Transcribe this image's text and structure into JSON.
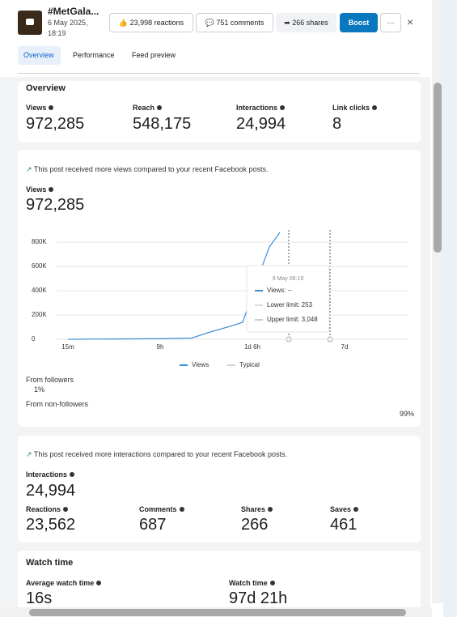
{
  "header": {
    "title": "#MetGala...",
    "date": "6 May 2025,",
    "time": "18:19",
    "actions": [
      "23,998 reactions",
      "751 comments",
      "266 shares"
    ],
    "boost": "Boost"
  },
  "tabs": [
    "Overview",
    "Performance",
    "Feed preview"
  ],
  "overview": {
    "heading": "Overview",
    "metrics": [
      {
        "label": "Views",
        "value": "972,285"
      },
      {
        "label": "Reach",
        "value": "548,175"
      },
      {
        "label": "Interactions",
        "value": "24,994"
      },
      {
        "label": "Link clicks",
        "value": "8"
      }
    ]
  },
  "views": {
    "note": "This post received more views compared to your recent Facebook posts.",
    "label": "Views",
    "value": "972,285",
    "followers": {
      "label": "From followers",
      "value": "1%"
    },
    "non_followers": {
      "label": "From non-followers",
      "value": "99%"
    }
  },
  "chart_data": {
    "type": "line",
    "x": [
      0.25,
      9,
      16.2,
      20.4,
      25,
      27.8,
      29.6,
      39.7,
      55.4,
      71.2
    ],
    "series": [
      {
        "name": "Views",
        "color": "#3b8fd9",
        "values": [
          0,
          5000,
          10000,
          60000,
          107000,
          140000,
          327000,
          527000,
          760000,
          880000
        ]
      },
      {
        "name": "Typical",
        "color": "#cfd3d8",
        "values": [
          null,
          null,
          null,
          null,
          null,
          null,
          null,
          null,
          null,
          null
        ]
      }
    ],
    "ylim": [
      0,
      800000
    ],
    "yticks": [
      0,
      {
        "value": 200000,
        "label": "200K"
      },
      {
        "value": 400000,
        "label": "400K"
      },
      {
        "value": 600000,
        "label": "600K"
      },
      {
        "value": 800000,
        "label": "800K"
      }
    ],
    "xticks": [
      {
        "value": 0.25,
        "label": "15m"
      },
      {
        "value": 9,
        "label": "9h"
      },
      {
        "value": 30,
        "label": "1d 6h"
      },
      {
        "value": 168,
        "label": "7d"
      }
    ],
    "grid": true,
    "tooltip": {
      "title": "9 May 06:19",
      "lines": [
        "Views: --",
        "Lower limit: 253",
        "Upper limit: 3,048"
      ]
    }
  },
  "interactions": {
    "note": "This post received more interactions compared to your recent Facebook posts.",
    "label": "Interactions",
    "value": "24,994",
    "metrics": [
      {
        "label": "Reactions",
        "value": "23,562"
      },
      {
        "label": "Comments",
        "value": "687"
      },
      {
        "label": "Shares",
        "value": "266"
      },
      {
        "label": "Saves",
        "value": "461"
      }
    ]
  },
  "watch_time": {
    "heading": "Watch time",
    "metrics": [
      {
        "label": "Average watch time",
        "value": "16s"
      },
      {
        "label": "Watch time",
        "value": "97d 21h"
      }
    ]
  }
}
